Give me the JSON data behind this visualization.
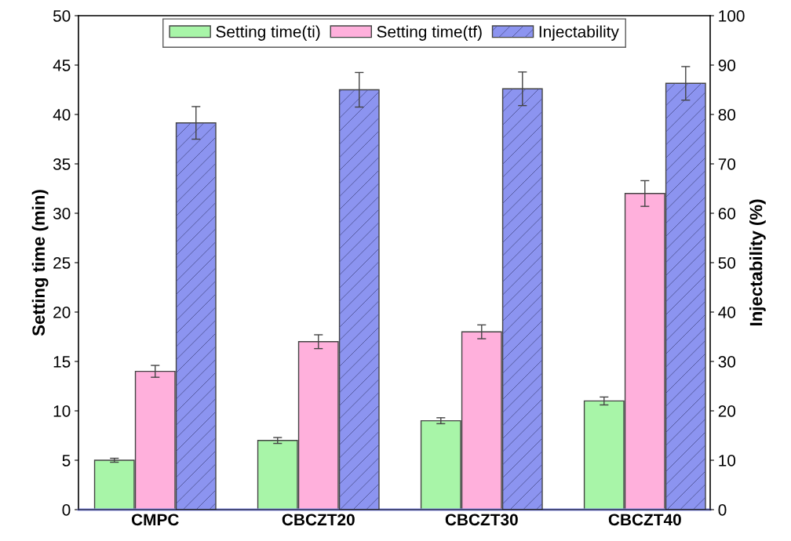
{
  "chart_data": {
    "type": "bar",
    "categories": [
      "CMPC",
      "CBCZT20",
      "CBCZT30",
      "CBCZT40"
    ],
    "ylabel": "Setting time (min)",
    "y2label": "Injectability (%)",
    "series": [
      {
        "name": "Setting time(ti)",
        "color": "#a8f5a8",
        "values": [
          5,
          7,
          9,
          11
        ],
        "errors": [
          0.2,
          0.3,
          0.3,
          0.4
        ]
      },
      {
        "name": "Setting time(tf)",
        "color": "#ffb0dc",
        "values": [
          14,
          17,
          18,
          32
        ],
        "errors": [
          0.6,
          0.7,
          0.7,
          1.3
        ]
      },
      {
        "name": "Injectability",
        "color": "#8c94f0",
        "axis": "y2",
        "values": [
          78.3,
          85,
          85.2,
          86.3
        ],
        "errors": [
          3.3,
          3.5,
          3.4,
          3.4
        ]
      }
    ],
    "ylim": [
      0,
      50
    ],
    "yticks": [
      0,
      5,
      10,
      15,
      20,
      25,
      30,
      35,
      40,
      45,
      50
    ],
    "y2lim": [
      0,
      100
    ],
    "y2ticks": [
      0,
      10,
      20,
      30,
      40,
      50,
      60,
      70,
      80,
      90,
      100
    ],
    "grid": false,
    "legend": "top"
  }
}
